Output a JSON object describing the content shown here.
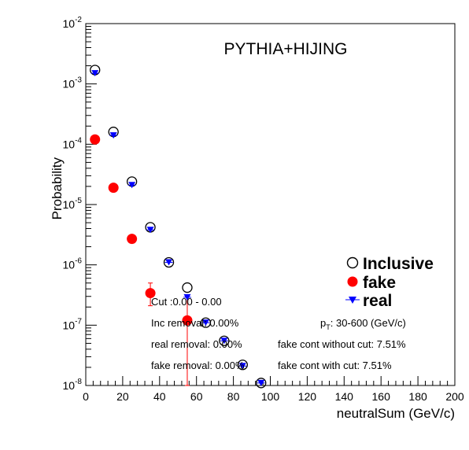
{
  "chart_data": {
    "type": "scatter",
    "title": "PYTHIA+HIJING",
    "xlabel": "neutralSum (GeV/c)",
    "ylabel": "Probability",
    "xlim": [
      0,
      200
    ],
    "ylim": [
      1e-08,
      0.01
    ],
    "yscale": "log",
    "x_ticks": [
      "0",
      "20",
      "40",
      "60",
      "80",
      "100",
      "120",
      "140",
      "160",
      "180",
      "200"
    ],
    "y_ticks": [
      {
        "base": "10",
        "exp": "-2",
        "value": 0.01
      },
      {
        "base": "10",
        "exp": "-3",
        "value": 0.001
      },
      {
        "base": "10",
        "exp": "-4",
        "value": 0.0001
      },
      {
        "base": "10",
        "exp": "-5",
        "value": 1e-05
      },
      {
        "base": "10",
        "exp": "-6",
        "value": 1e-06
      },
      {
        "base": "10",
        "exp": "-7",
        "value": 1e-07
      },
      {
        "base": "10",
        "exp": "-8",
        "value": 1e-08
      }
    ],
    "legend_position": "right",
    "series": [
      {
        "name": "Inclusive",
        "marker": "open-circle",
        "color": "#000000",
        "x": [
          5,
          15,
          25,
          35,
          45,
          55,
          65,
          75,
          85,
          95
        ],
        "y": [
          0.0017,
          0.00016,
          2.4e-05,
          4.2e-06,
          1.1e-06,
          4.2e-07,
          1.1e-07,
          5.5e-08,
          2.2e-08,
          1.1e-08
        ]
      },
      {
        "name": "fake",
        "marker": "filled-circle",
        "color": "#ff0000",
        "x": [
          5,
          15,
          25,
          35,
          55
        ],
        "y": [
          0.00012,
          1.9e-05,
          2.7e-06,
          3.4e-07,
          1.2e-07
        ],
        "yerr_low": [
          0,
          0,
          0,
          1.3e-07,
          1.1e-07
        ],
        "yerr_high": [
          0,
          0,
          0,
          1.6e-07,
          1.8e-07
        ]
      },
      {
        "name": "real",
        "marker": "filled-triangle-down",
        "color": "#0000ff",
        "x": [
          5,
          15,
          25,
          35,
          45,
          55,
          65,
          75,
          85,
          95
        ],
        "y": [
          0.0015,
          0.00014,
          2.1e-05,
          3.8e-06,
          1.1e-06,
          2.9e-07,
          1.1e-07,
          5.5e-08,
          2.1e-08,
          1.1e-08
        ]
      }
    ],
    "annotations": {
      "cut": "Cut :0.00 - 0.00",
      "inc_removal": "Inc removal: 0.00%",
      "real_removal": "real removal: 0.00%",
      "fake_removal": "fake removal: 0.00%",
      "pt_p": "p",
      "pt_sub": "T",
      "pt_rest": ": 30-600 (GeV/c)",
      "fake_cont_without": "fake cont without cut: 7.51%",
      "fake_cont_with": "fake cont with cut: 7.51%"
    }
  }
}
